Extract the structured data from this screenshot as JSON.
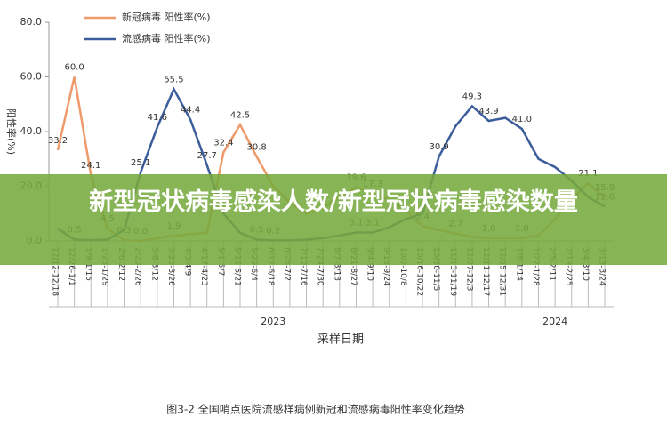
{
  "chart_data": {
    "type": "line",
    "ylabel": "阳性率(%)",
    "xlabel": "采样日期",
    "caption": "图3-2 全国哨点医院流感样病例新冠和流感病毒阳性率变化趋势",
    "banner": "新型冠状病毒感染人数/新型冠状病毒感染数量",
    "years": [
      {
        "label": "2023",
        "index": 13
      },
      {
        "label": "2024",
        "index": 30
      }
    ],
    "categories": [
      "12/12-12/18",
      "12/26-1/1",
      "1/9-1/15",
      "1/23-1/29",
      "2/6-2/12",
      "2/20-2/26",
      "3/6-3/12",
      "3/20-3/26",
      "4/3-4/9",
      "4/17-4/23",
      "5/1-5/7",
      "5/15-5/21",
      "5/29-6/4",
      "6/12-6/18",
      "6/26-7/2",
      "7/10-7/16",
      "7/24-7/30",
      "8/7-8/13",
      "8/21-8/27",
      "9/4-9/10",
      "9/18-9/24",
      "10/2-10/8",
      "10/16-10/22",
      "10/30-11/5",
      "11/13-11/19",
      "11/27-12/3",
      "12/11-12/17",
      "12/25-12/31",
      "1/8-1/14",
      "1/22-1/28",
      "2/5-2/11",
      "2/19-2/25",
      "3/4-3/10",
      "3/18-3/24"
    ],
    "series": [
      {
        "name": "新冠病毒 阳性率(%)",
        "color": "#ee9a6a",
        "values": [
          33.2,
          60.0,
          24.1,
          4.5,
          0.3,
          0.0,
          1.0,
          1.9,
          2.5,
          3.0,
          32.4,
          42.5,
          30.8,
          20,
          14,
          10,
          12,
          16,
          19.6,
          17.3,
          15,
          11,
          5.4,
          4,
          2.7,
          1.5,
          1.0,
          1.0,
          1.0,
          2,
          8,
          15,
          21.1,
          15.9
        ],
        "value_labels": [
          "33.2",
          "60.0",
          "24.1",
          "4.5",
          "0.3",
          "0.0",
          null,
          "1.9",
          null,
          null,
          "32.4",
          "42.5",
          "30.8",
          null,
          null,
          null,
          null,
          null,
          "19.6",
          "17.3",
          null,
          null,
          "5.4",
          null,
          "2.7",
          null,
          "1.0",
          null,
          "1.0",
          null,
          null,
          null,
          "21.1",
          "15.9"
        ]
      },
      {
        "name": "流感病毒 阳性率(%)",
        "color": "#3c5d9c",
        "values": [
          4.5,
          0.5,
          0.3,
          0.5,
          4,
          25.1,
          41.6,
          55.5,
          44.4,
          27.7,
          10,
          3,
          0.5,
          0.2,
          0.2,
          0.5,
          1,
          2,
          3.1,
          3.1,
          5,
          8,
          10,
          30.9,
          42,
          49.3,
          43.9,
          45,
          41.0,
          30,
          27,
          22,
          16,
          12.6
        ],
        "value_labels": [
          null,
          "0.5",
          null,
          null,
          null,
          "25.1",
          "41.6",
          "55.5",
          "44.4",
          "27.7",
          null,
          null,
          "0.5",
          "0.2",
          null,
          null,
          null,
          null,
          "3.1",
          "3.1",
          null,
          null,
          null,
          "30.9",
          null,
          "49.3",
          "43.9",
          null,
          "41.0",
          null,
          null,
          null,
          null,
          "12.6"
        ]
      }
    ],
    "ylim": [
      0,
      80
    ],
    "yticks": [
      {
        "value": 0,
        "label": "0.0"
      },
      {
        "value": 20,
        "label": "20.0"
      },
      {
        "value": 40,
        "label": "40.0"
      },
      {
        "value": 60,
        "label": "60.0"
      },
      {
        "value": 80,
        "label": "80.0"
      }
    ],
    "grid": false,
    "legend": "top-left"
  }
}
